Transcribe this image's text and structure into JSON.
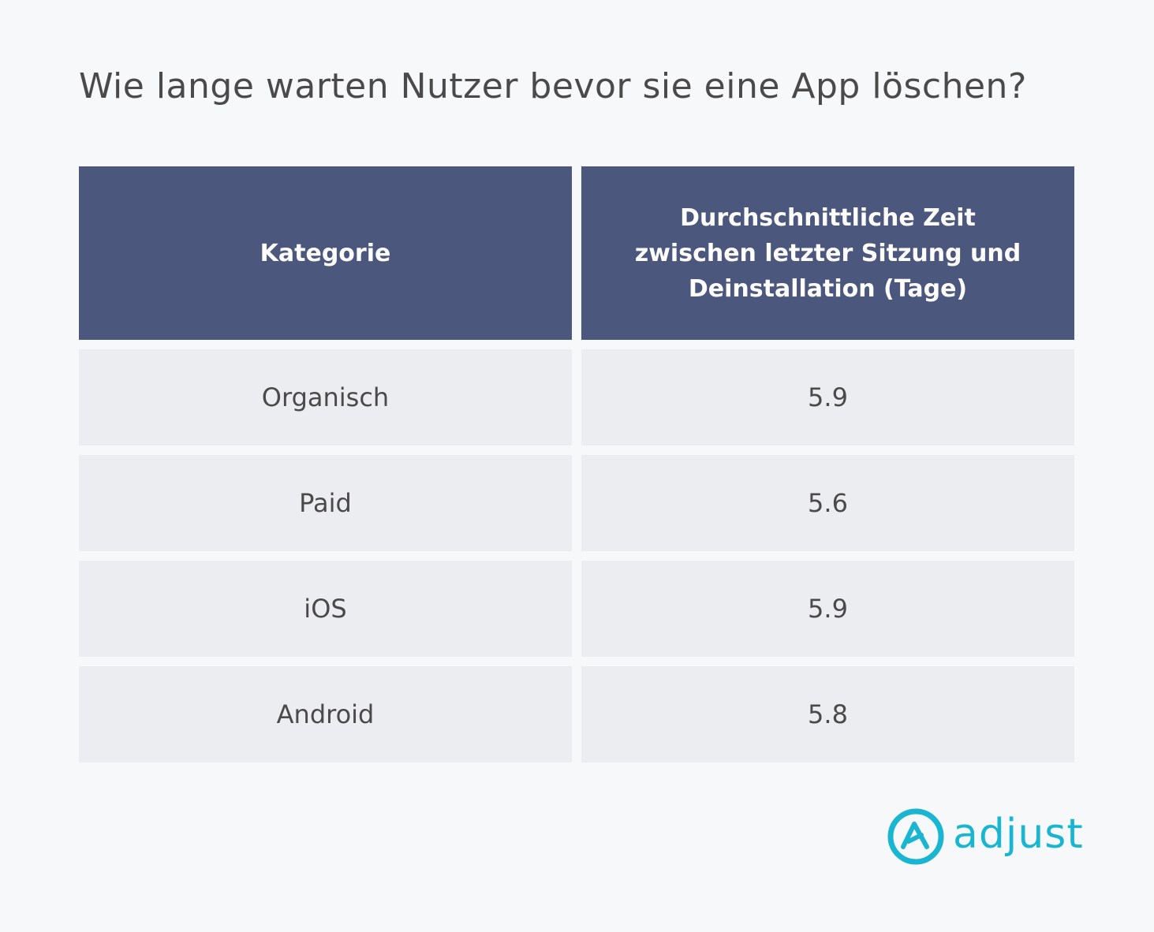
{
  "chart_data": {
    "type": "table",
    "title": "Wie lange warten Nutzer bevor sie eine App löschen?",
    "columns": [
      "Kategorie",
      "Durchschnittliche Zeit zwischen letzter Sitzung und Deinstallation (Tage)"
    ],
    "header_lines": [
      "Durchschnittliche Zeit",
      "zwischen letzter Sitzung und",
      "Deinstallation (Tage)"
    ],
    "rows": [
      {
        "category": "Organisch",
        "value": "5.9"
      },
      {
        "category": "Paid",
        "value": "5.6"
      },
      {
        "category": "iOS",
        "value": "5.9"
      },
      {
        "category": "Android",
        "value": "5.8"
      }
    ]
  },
  "brand": {
    "name": "adjust",
    "icon": "adjust-logo-icon",
    "color": "#1ab6d1"
  },
  "colors": {
    "header_bg": "#4b577d",
    "row_bg": "#ecedf0",
    "page_bg": "#f7f8fa"
  }
}
